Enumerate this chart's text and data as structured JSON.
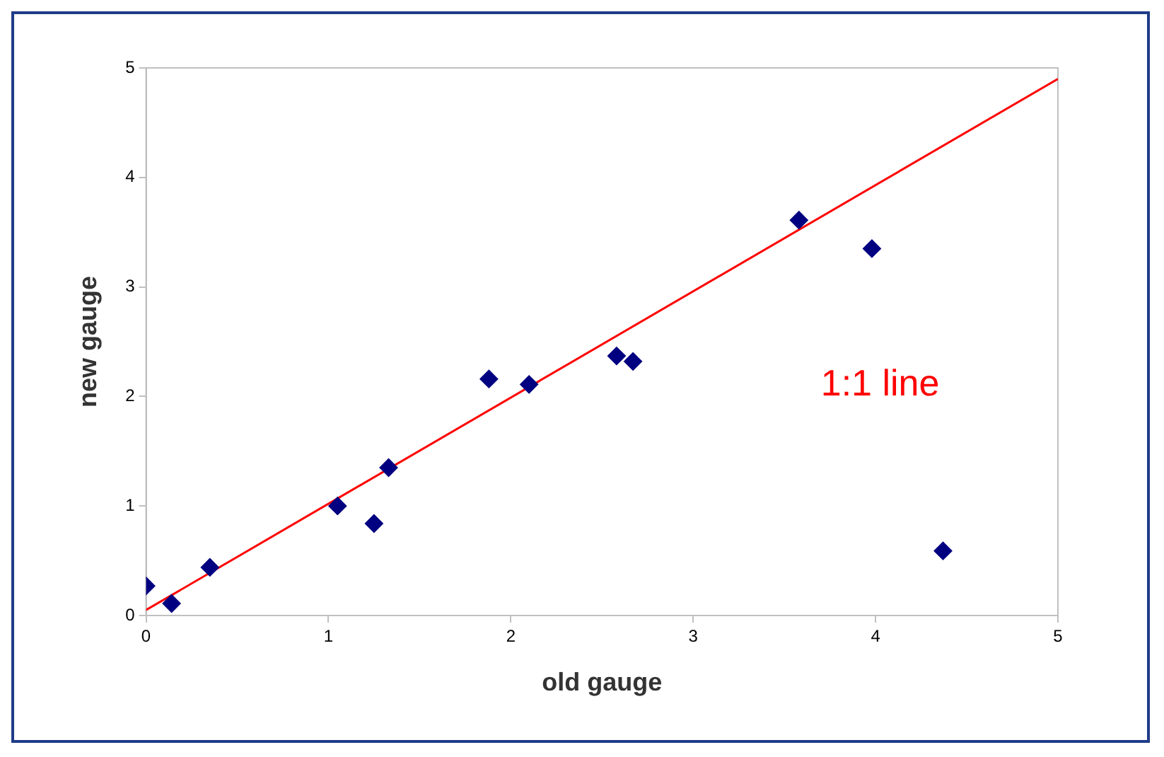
{
  "chart_data": {
    "type": "scatter",
    "xlabel": "old gauge",
    "ylabel": "new gauge",
    "xlim": [
      0,
      5
    ],
    "ylim": [
      0,
      5
    ],
    "xticks": [
      0,
      1,
      2,
      3,
      4,
      5
    ],
    "yticks": [
      0,
      1,
      2,
      3,
      4,
      5
    ],
    "grid": false,
    "legend": false,
    "annotations": [
      "1:1 line"
    ],
    "series": [
      {
        "color": "#000080",
        "marker": "diamond",
        "x": [
          0.0,
          0.14,
          0.35,
          1.05,
          1.25,
          1.33,
          1.88,
          2.1,
          2.58,
          2.67,
          3.58,
          3.98,
          4.37
        ],
        "values": [
          0.27,
          0.11,
          0.44,
          1.0,
          0.84,
          1.35,
          2.16,
          2.11,
          2.37,
          2.32,
          3.61,
          3.35,
          0.59
        ]
      },
      {
        "type": "line",
        "color": "#ff0000",
        "marker": "none",
        "line_style": "solid",
        "x": [
          0,
          5
        ],
        "values": [
          0.05,
          4.9
        ]
      }
    ]
  }
}
